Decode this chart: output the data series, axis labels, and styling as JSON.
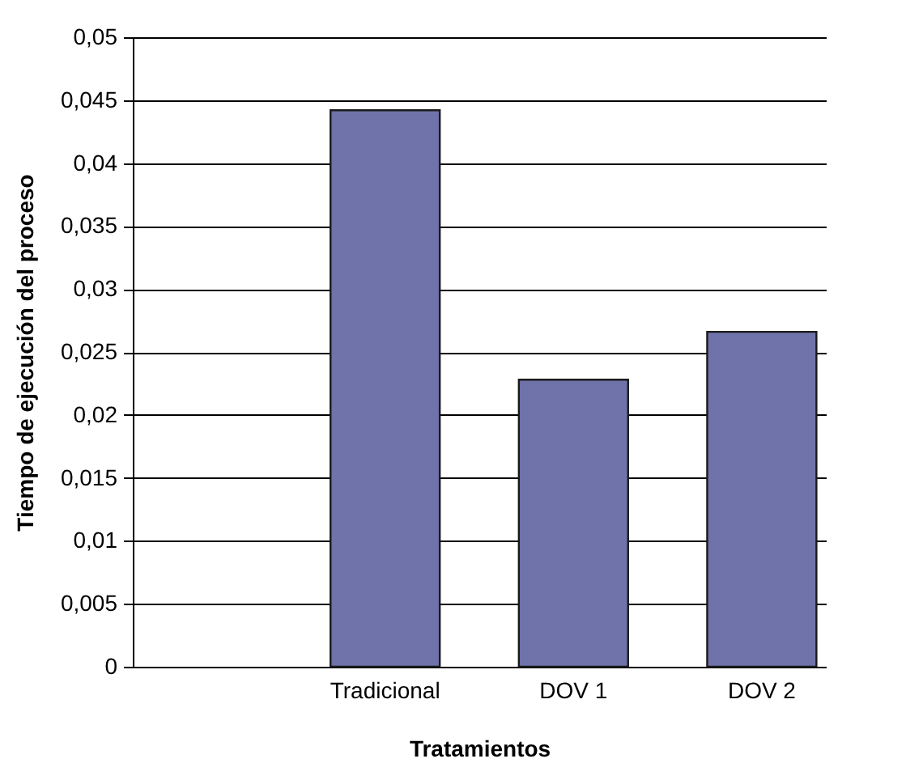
{
  "chart_data": {
    "type": "bar",
    "xlabel": "Tratamientos",
    "ylabel": "Tiempo de ejecución del proceso",
    "categories": [
      null,
      "Tradicional",
      "DOV 1",
      "DOV 2"
    ],
    "values": [
      null,
      0.0442,
      0.0228,
      0.0266
    ],
    "color": "#6f73aa",
    "ylim": [
      0,
      0.05
    ],
    "yticks": [
      {
        "value": 0,
        "label": "0"
      },
      {
        "value": 0.005,
        "label": "0,005"
      },
      {
        "value": 0.01,
        "label": "0,01"
      },
      {
        "value": 0.015,
        "label": "0,015"
      },
      {
        "value": 0.02,
        "label": "0,02"
      },
      {
        "value": 0.025,
        "label": "0,025"
      },
      {
        "value": 0.03,
        "label": "0,03"
      },
      {
        "value": 0.035,
        "label": "0,035"
      },
      {
        "value": 0.04,
        "label": "0,04"
      },
      {
        "value": 0.045,
        "label": "0,045"
      },
      {
        "value": 0.05,
        "label": "0,05"
      }
    ],
    "grid": "y"
  }
}
